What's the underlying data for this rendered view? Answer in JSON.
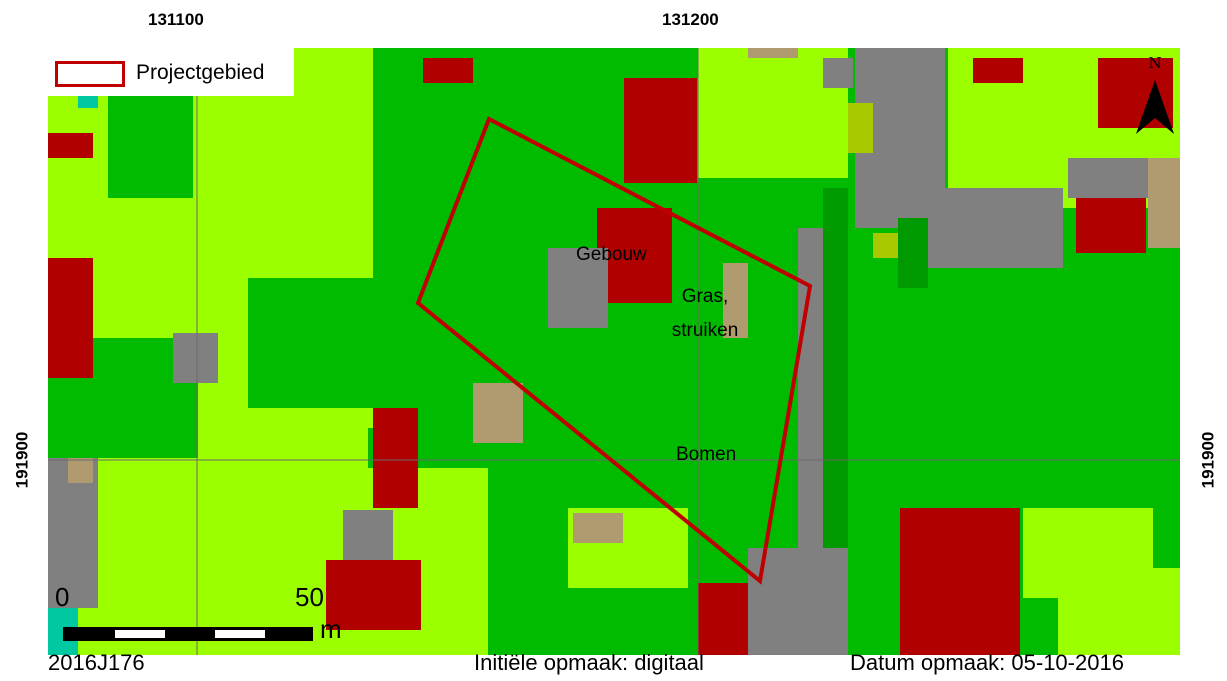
{
  "coordinates": {
    "x_ticks": [
      "131100",
      "131200"
    ],
    "y_left": "191900",
    "y_right": "191900"
  },
  "legend": {
    "label": "Projectgebied",
    "swatch_color": "#c00000"
  },
  "map_labels": {
    "building": "Gebouw",
    "grass_1": "Gras,",
    "grass_2": "struiken",
    "trees": "Bomen"
  },
  "scale_bar": {
    "start": "0",
    "end": "50",
    "unit": "m"
  },
  "north_arrow": {
    "label": "N",
    "icon": "north-arrow-icon"
  },
  "footer": {
    "code": "2016J176",
    "initial_layout": "Initiële opmaak: digitaal",
    "date": "Datum opmaak: 05-10-2016"
  },
  "colors": {
    "trees": "#00bb00",
    "grass": "#9cff00",
    "building": "#b00000",
    "paved": "#808080",
    "bare": "#b09a70",
    "dark_trees": "#009900",
    "olive": "#a8c800",
    "water": "#00c8a0",
    "project_outline": "#c00000"
  }
}
